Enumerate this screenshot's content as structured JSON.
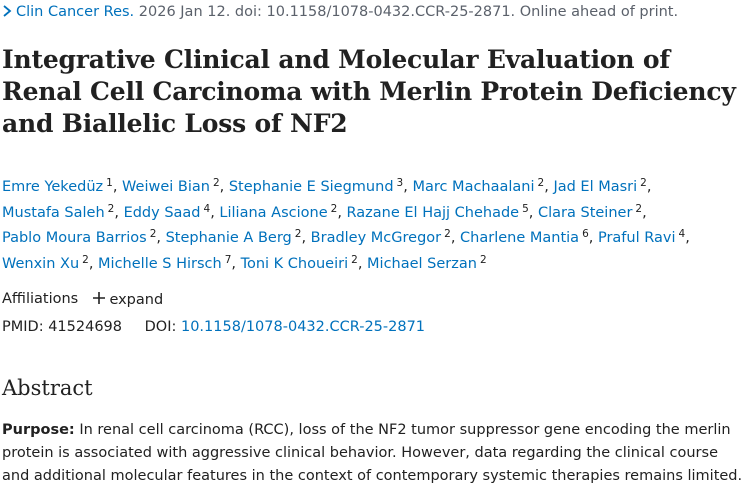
{
  "citation": {
    "journal": "Clin Cancer Res.",
    "details": "2026 Jan 12. doi: 10.1158/1078-0432.CCR-25-2871. Online ahead of print."
  },
  "title": "Integrative Clinical and Molecular Evaluation of Renal Cell Carcinoma with Merlin Protein Deficiency and Biallelic Loss of NF2",
  "authors": [
    {
      "name": "Emre Yekedüz",
      "aff": "1"
    },
    {
      "name": "Weiwei Bian",
      "aff": "2"
    },
    {
      "name": "Stephanie E Siegmund",
      "aff": "3"
    },
    {
      "name": "Marc Machaalani",
      "aff": "2"
    },
    {
      "name": "Jad El Masri",
      "aff": "2"
    },
    {
      "name": "Mustafa Saleh",
      "aff": "2"
    },
    {
      "name": "Eddy Saad",
      "aff": "4"
    },
    {
      "name": "Liliana Ascione",
      "aff": "2"
    },
    {
      "name": "Razane El Hajj Chehade",
      "aff": "5"
    },
    {
      "name": "Clara Steiner",
      "aff": "2"
    },
    {
      "name": "Pablo Moura Barrios",
      "aff": "2"
    },
    {
      "name": "Stephanie A Berg",
      "aff": "2"
    },
    {
      "name": "Bradley McGregor",
      "aff": "2"
    },
    {
      "name": "Charlene Mantia",
      "aff": "6"
    },
    {
      "name": "Praful Ravi",
      "aff": "4"
    },
    {
      "name": "Wenxin Xu",
      "aff": "2"
    },
    {
      "name": "Michelle S Hirsch",
      "aff": "7"
    },
    {
      "name": "Toni K Choueiri",
      "aff": "2"
    },
    {
      "name": "Michael Serzan",
      "aff": "2"
    }
  ],
  "affiliations": {
    "label": "Affiliations",
    "toggle": "expand"
  },
  "identifiers": {
    "pmid_label": "PMID:",
    "pmid": "41524698",
    "doi_label": "DOI:",
    "doi": "10.1158/1078-0432.CCR-25-2871"
  },
  "abstract": {
    "heading": "Abstract",
    "sections": [
      {
        "label": "Purpose:",
        "text": "In renal cell carcinoma (RCC), loss of the NF2 tumor suppressor gene encoding the merlin protein is associated with aggressive clinical behavior. However, data regarding the clinical course and additional molecular features in the context of contemporary systemic therapies remains limited."
      }
    ]
  }
}
